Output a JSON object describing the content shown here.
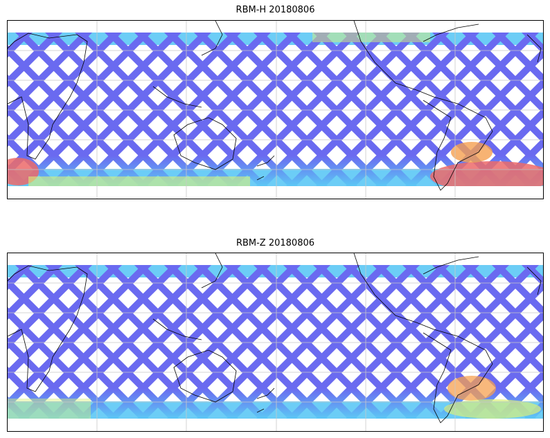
{
  "panels": [
    {
      "title": "RBM-H 20180806",
      "hot_regions": [
        "south-atlantic",
        "southern-indian-ocean"
      ]
    },
    {
      "title": "RBM-Z 20180806",
      "hot_regions": [
        "south-america-east"
      ]
    }
  ],
  "colors": {
    "track_low": "#6a6af0",
    "track_mid": "#5cc8f5",
    "track_warm": "#d8f07a",
    "track_hot": "#ec6a6a",
    "grid": "#c8c8c8",
    "coast": "#000000"
  },
  "map": {
    "projection": "plate-carree",
    "gridlines": true,
    "central_longitude": "pacific"
  }
}
